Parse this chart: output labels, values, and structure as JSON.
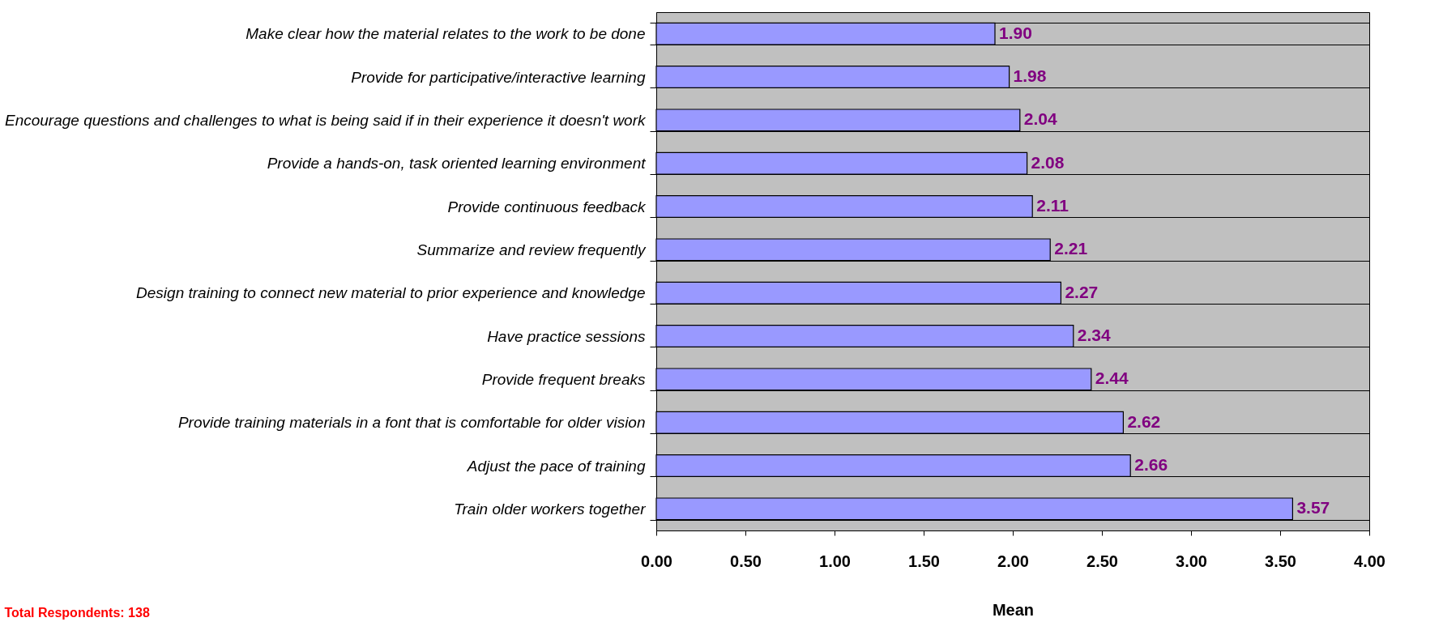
{
  "chart_data": {
    "type": "bar",
    "orientation": "horizontal",
    "xlabel": "Mean",
    "categories": [
      "Make clear how the material relates to the work to be done",
      "Provide for participative/interactive learning",
      "Encourage questions and challenges to what is being said if in their experience it doesn't work",
      "Provide a hands-on, task oriented learning environment",
      "Provide continuous feedback",
      "Summarize and review frequently",
      "Design training to connect new material to prior experience and knowledge",
      "Have practice sessions",
      "Provide frequent breaks",
      "Provide training materials in a font that is comfortable for older vision",
      "Adjust the pace of training",
      "Train older workers together"
    ],
    "values": [
      1.9,
      1.98,
      2.04,
      2.08,
      2.11,
      2.21,
      2.27,
      2.34,
      2.44,
      2.62,
      2.66,
      3.57
    ],
    "value_labels": [
      "1.90",
      "1.98",
      "2.04",
      "2.08",
      "2.11",
      "2.21",
      "2.27",
      "2.34",
      "2.44",
      "2.62",
      "2.66",
      "3.57"
    ],
    "color": "#9999ff",
    "xlim": [
      0,
      4
    ],
    "xticks": [
      {
        "value": 0,
        "label": "0.00"
      },
      {
        "value": 0.5,
        "label": "0.50"
      },
      {
        "value": 1,
        "label": "1.00"
      },
      {
        "value": 1.5,
        "label": "1.50"
      },
      {
        "value": 2,
        "label": "2.00"
      },
      {
        "value": 2.5,
        "label": "2.50"
      },
      {
        "value": 3,
        "label": "3.00"
      },
      {
        "value": 3.5,
        "label": "3.50"
      },
      {
        "value": 4,
        "label": "4.00"
      }
    ],
    "grid": "y",
    "annotations": [
      "Total Respondents: 138"
    ]
  }
}
